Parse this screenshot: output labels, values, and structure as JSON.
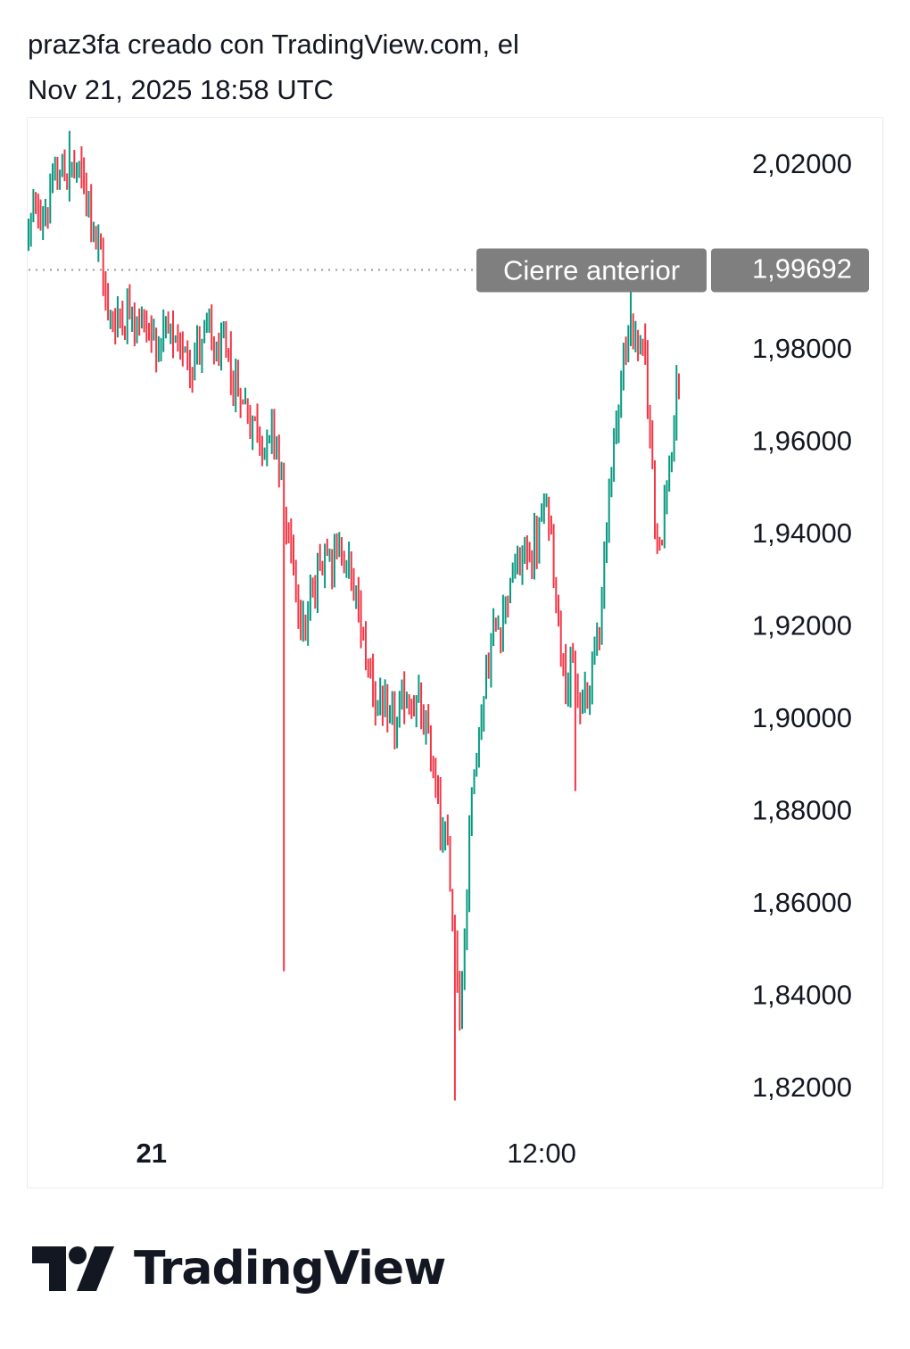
{
  "header": {
    "line1": "praz3fa creado con TradingView.com, el",
    "line2": "Nov 21, 2025 18:58 UTC"
  },
  "brand": {
    "name": "TradingView",
    "logo_icon": "tradingview-logo-icon"
  },
  "colors": {
    "up": "#089981",
    "down": "#f23645",
    "label_bg": "#7f7f7f",
    "dotted": "#9598a1"
  },
  "chart_data": {
    "type": "ohlc",
    "ylim": [
      1.81,
      2.03
    ],
    "y_ticks": [
      "2,02000",
      "1,98000",
      "1,96000",
      "1,94000",
      "1,92000",
      "1,90000",
      "1,88000",
      "1,86000",
      "1,84000",
      "1,82000"
    ],
    "y_tick_values": [
      2.02,
      1.98,
      1.96,
      1.94,
      1.92,
      1.9,
      1.88,
      1.86,
      1.84,
      1.82
    ],
    "x_labels": [
      {
        "text": "21",
        "bar_index": 51,
        "bold": true
      },
      {
        "text": "12:00",
        "bar_index": 213,
        "bold": false
      }
    ],
    "previous_close": {
      "label": "Cierre anterior",
      "value_text": "1,99692",
      "value": 1.99692
    },
    "trend_anchors": [
      [
        0,
        2.005
      ],
      [
        8,
        2.012
      ],
      [
        16,
        2.02
      ],
      [
        26,
        2.012
      ],
      [
        34,
        1.985
      ],
      [
        42,
        1.99
      ],
      [
        52,
        1.983
      ],
      [
        62,
        1.978
      ],
      [
        72,
        1.982
      ],
      [
        84,
        1.975
      ],
      [
        96,
        1.962
      ],
      [
        104,
        1.96
      ],
      [
        108,
        1.935
      ],
      [
        116,
        1.92
      ],
      [
        124,
        1.94
      ],
      [
        132,
        1.935
      ],
      [
        140,
        1.915
      ],
      [
        150,
        1.895
      ],
      [
        160,
        1.905
      ],
      [
        168,
        1.89
      ],
      [
        176,
        1.862
      ],
      [
        180,
        1.835
      ],
      [
        184,
        1.885
      ],
      [
        192,
        1.915
      ],
      [
        200,
        1.93
      ],
      [
        208,
        1.935
      ],
      [
        216,
        1.945
      ],
      [
        222,
        1.915
      ],
      [
        230,
        1.9
      ],
      [
        236,
        1.915
      ],
      [
        244,
        1.965
      ],
      [
        250,
        1.985
      ],
      [
        256,
        1.978
      ],
      [
        262,
        1.935
      ],
      [
        270,
        1.97
      ]
    ],
    "bars_count": 271,
    "notable_extremes": [
      {
        "bar_index": 17,
        "high": 2.027
      },
      {
        "bar_index": 106,
        "low": 1.845
      },
      {
        "bar_index": 177,
        "low": 1.817
      },
      {
        "bar_index": 227,
        "low": 1.884
      },
      {
        "bar_index": 250,
        "high": 1.994
      }
    ]
  }
}
